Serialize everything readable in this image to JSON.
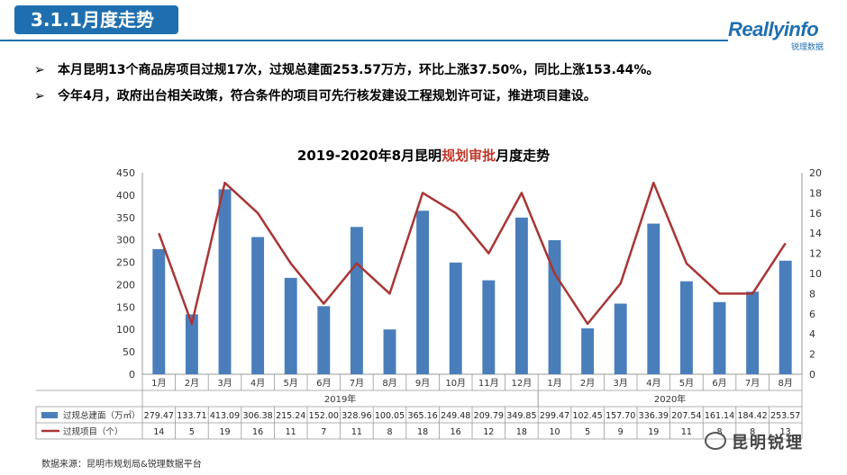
{
  "header": {
    "section_title": "3.1.1月度走势"
  },
  "logo": {
    "main": "Reallyinfo",
    "sub": "锐理数据"
  },
  "bullets": [
    {
      "mark": "➢",
      "text": "本月昆明13个商品房项目过规17次，过规总建面253.57万方，环比上涨37.50%，同比上涨153.44%。"
    },
    {
      "mark": "➢",
      "text": "今年4月，政府出台相关政策，符合条件的项目可先行核发建设工程规划许可证，推进项目建设。"
    }
  ],
  "chart_title": {
    "part1": "2019-2020年8月昆明",
    "highlight": "规划审批",
    "part2": "月度走势"
  },
  "source": "数据来源：昆明市规划局&锐理数据平台",
  "wechat": {
    "label": "昆明锐理"
  },
  "colors": {
    "bar": "#4a7ebb",
    "line": "#a93535",
    "title_bg": "#1f6fb0",
    "highlight": "#c0392b"
  },
  "chart_data": {
    "type": "bar+line",
    "title": "2019-2020年8月昆明规划审批月度走势",
    "categories": [
      "1月",
      "2月",
      "3月",
      "4月",
      "5月",
      "6月",
      "7月",
      "8月",
      "9月",
      "10月",
      "11月",
      "12月",
      "1月",
      "2月",
      "3月",
      "4月",
      "5月",
      "6月",
      "7月",
      "8月"
    ],
    "year_groups": [
      {
        "label": "2019年",
        "count": 12
      },
      {
        "label": "2020年",
        "count": 8
      }
    ],
    "series": [
      {
        "name": "过规总建面（万㎡）",
        "type": "bar",
        "axis": "left",
        "values": [
          279.47,
          133.71,
          413.09,
          306.38,
          215.24,
          152.0,
          328.96,
          100.05,
          365.16,
          249.48,
          209.79,
          349.85,
          299.47,
          102.45,
          157.7,
          336.39,
          207.54,
          161.14,
          184.42,
          253.57
        ],
        "labels": [
          "279.47",
          "133.71",
          "413.09",
          "306.38",
          "215.24",
          "152.00",
          "328.96",
          "100.05",
          "365.16",
          "249.48",
          "209.79",
          "349.85",
          "299.47",
          "102.45",
          "157.70",
          "336.39",
          "207.54",
          "161.14",
          "184.42",
          "253.57"
        ]
      },
      {
        "name": "过规项目（个）",
        "type": "line",
        "axis": "right",
        "values": [
          14,
          5,
          19,
          16,
          11,
          7,
          11,
          8,
          18,
          16,
          12,
          18,
          10,
          5,
          9,
          19,
          11,
          8,
          8,
          13
        ],
        "labels": [
          "14",
          "5",
          "19",
          "16",
          "11",
          "7",
          "11",
          "8",
          "18",
          "16",
          "12",
          "18",
          "10",
          "5",
          "9",
          "19",
          "11",
          "8",
          "8",
          "13"
        ]
      }
    ],
    "y_left": {
      "min": 0,
      "max": 450,
      "step": 50,
      "ticks": [
        "0",
        "50",
        "100",
        "150",
        "200",
        "250",
        "300",
        "350",
        "400",
        "450"
      ]
    },
    "y_right": {
      "min": 0,
      "max": 20,
      "step": 2,
      "ticks": [
        "0",
        "2",
        "4",
        "6",
        "8",
        "10",
        "12",
        "14",
        "16",
        "18",
        "20"
      ]
    },
    "grid": false,
    "legend": "data-table"
  }
}
